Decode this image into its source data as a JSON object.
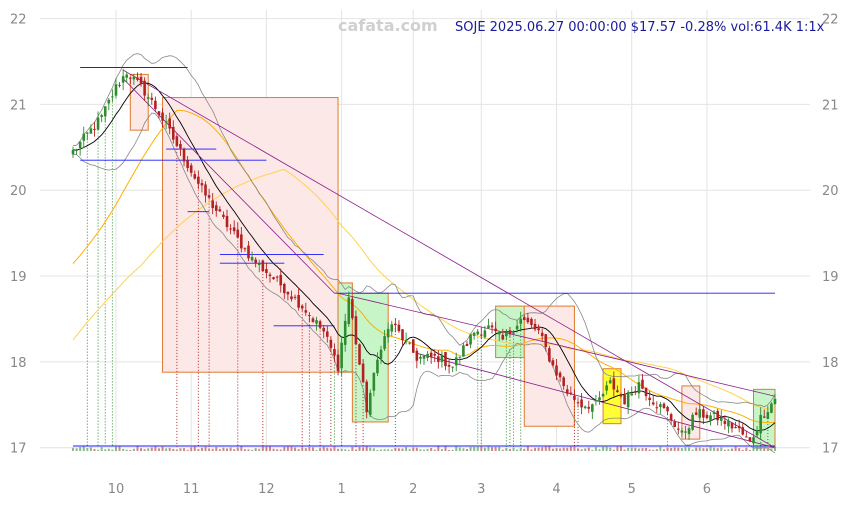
{
  "watermark": "cafata.com",
  "header": "SOJE 2025.06.27 00:00:00 $17.57 -0.28% vol:61.4K 1:1x",
  "chart_data": {
    "type": "candlestick",
    "ticker": "SOJE",
    "last_close": 17.57,
    "change_pct": -0.28,
    "volume": "61.4K",
    "y_ticks": [
      17,
      18,
      19,
      20,
      21,
      22
    ],
    "ylim": [
      16.95,
      22.1
    ],
    "x_tick_labels": [
      "10",
      "11",
      "12",
      "1",
      "2",
      "3",
      "4",
      "5",
      "6"
    ],
    "x_tick_positions": [
      12,
      33,
      54,
      75,
      95,
      114,
      135,
      156,
      177
    ],
    "n_bars": 197,
    "grid": true,
    "key_closes": [
      {
        "i": 0,
        "v": 20.45
      },
      {
        "i": 8,
        "v": 20.85
      },
      {
        "i": 12,
        "v": 21.2
      },
      {
        "i": 15,
        "v": 21.38
      },
      {
        "i": 20,
        "v": 21.15
      },
      {
        "i": 24,
        "v": 20.9
      },
      {
        "i": 30,
        "v": 20.45
      },
      {
        "i": 36,
        "v": 20.0
      },
      {
        "i": 42,
        "v": 19.65
      },
      {
        "i": 50,
        "v": 19.2
      },
      {
        "i": 58,
        "v": 18.9
      },
      {
        "i": 64,
        "v": 18.65
      },
      {
        "i": 70,
        "v": 18.35
      },
      {
        "i": 74,
        "v": 17.95
      },
      {
        "i": 77,
        "v": 18.75
      },
      {
        "i": 82,
        "v": 17.45
      },
      {
        "i": 86,
        "v": 18.2
      },
      {
        "i": 89,
        "v": 18.45
      },
      {
        "i": 96,
        "v": 18.05
      },
      {
        "i": 102,
        "v": 18.05
      },
      {
        "i": 106,
        "v": 17.95
      },
      {
        "i": 112,
        "v": 18.35
      },
      {
        "i": 116,
        "v": 18.4
      },
      {
        "i": 120,
        "v": 18.25
      },
      {
        "i": 125,
        "v": 18.5
      },
      {
        "i": 130,
        "v": 18.35
      },
      {
        "i": 134,
        "v": 17.95
      },
      {
        "i": 138,
        "v": 17.65
      },
      {
        "i": 142,
        "v": 17.5
      },
      {
        "i": 146,
        "v": 17.5
      },
      {
        "i": 150,
        "v": 17.75
      },
      {
        "i": 154,
        "v": 17.55
      },
      {
        "i": 158,
        "v": 17.75
      },
      {
        "i": 162,
        "v": 17.55
      },
      {
        "i": 166,
        "v": 17.4
      },
      {
        "i": 170,
        "v": 17.15
      },
      {
        "i": 174,
        "v": 17.4
      },
      {
        "i": 180,
        "v": 17.35
      },
      {
        "i": 186,
        "v": 17.2
      },
      {
        "i": 189,
        "v": 17.05
      },
      {
        "i": 192,
        "v": 17.35
      },
      {
        "i": 196,
        "v": 17.57
      }
    ],
    "support_resistance_lines": [
      {
        "y": 21.43,
        "i0": 2,
        "i1": 32
      },
      {
        "y": 20.48,
        "i0": 26,
        "i1": 40
      },
      {
        "y": 20.35,
        "i0": 2,
        "i1": 54
      },
      {
        "y": 19.75,
        "i0": 32,
        "i1": 38
      },
      {
        "y": 19.25,
        "i0": 41,
        "i1": 70
      },
      {
        "y": 19.15,
        "i0": 41,
        "i1": 59
      },
      {
        "y": 18.42,
        "i0": 56,
        "i1": 73
      },
      {
        "y": 18.8,
        "i0": 73,
        "i1": 196
      },
      {
        "y": 17.02,
        "i0": 0,
        "i1": 196
      }
    ],
    "zones": [
      {
        "i0": 16,
        "i1": 21,
        "top": 21.35,
        "bottom": 20.7,
        "color": "red"
      },
      {
        "i0": 25,
        "i1": 74,
        "top": 21.08,
        "bottom": 17.88,
        "color": "red"
      },
      {
        "i0": 74,
        "i1": 78,
        "top": 18.92,
        "bottom": 17.88,
        "color": "green"
      },
      {
        "i0": 78,
        "i1": 88,
        "top": 18.8,
        "bottom": 17.3,
        "color": "green"
      },
      {
        "i0": 118,
        "i1": 126,
        "top": 18.65,
        "bottom": 18.05,
        "color": "green"
      },
      {
        "i0": 126,
        "i1": 140,
        "top": 18.65,
        "bottom": 17.25,
        "color": "red"
      },
      {
        "i0": 148,
        "i1": 153,
        "top": 17.92,
        "bottom": 17.28,
        "color": "yellow"
      },
      {
        "i0": 170,
        "i1": 175,
        "top": 17.72,
        "bottom": 17.1,
        "color": "red"
      },
      {
        "i0": 190,
        "i1": 196,
        "top": 17.68,
        "bottom": 17.0,
        "color": "green"
      }
    ],
    "trend_lines": [
      {
        "i0": 14,
        "y0": 21.4,
        "i1": 196,
        "y1": 17.0
      },
      {
        "i0": 74,
        "y0": 18.8,
        "i1": 196,
        "y1": 17.6
      },
      {
        "i0": 96,
        "y0": 18.1,
        "i1": 196,
        "y1": 17.0
      },
      {
        "i0": 14,
        "y0": 21.3,
        "i1": 73,
        "y1": 18.8
      }
    ],
    "colors": {
      "up": "#2e8b2e",
      "down": "#b22222",
      "grid": "#e4e4e4",
      "sma_fast": "#000000",
      "sma_mid": "#ffb000",
      "sma_slow": "#ffd24d",
      "bollinger": "#888888",
      "level_line": "#1a1aff",
      "trend_line": "#8b1a8b",
      "zone_red_fill": "#fde8e8",
      "zone_green_fill": "#c8f5c8",
      "zone_yellow_fill": "#ffff33",
      "zone_border": "#e07a30"
    }
  }
}
